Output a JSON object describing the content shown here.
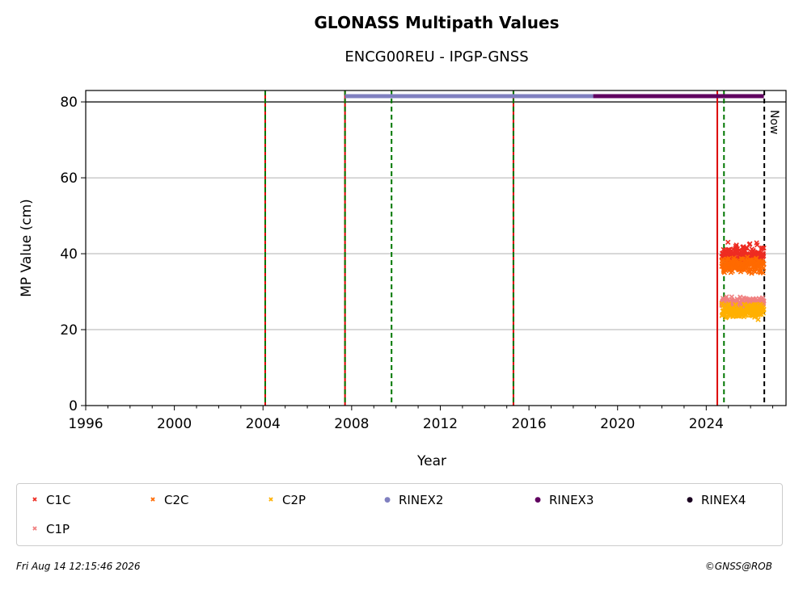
{
  "chart_data": {
    "type": "scatter",
    "title": "GLONASS Multipath Values",
    "subtitle": "ENCG00REU - IPGP-GNSS",
    "xlabel": "Year",
    "ylabel": "MP Value (cm)",
    "xlim": [
      1996,
      2027.6
    ],
    "ylim": [
      0,
      83
    ],
    "x_ticks": [
      1996,
      2000,
      2004,
      2008,
      2012,
      2016,
      2020,
      2024
    ],
    "y_ticks": [
      0,
      20,
      40,
      60,
      80
    ],
    "grid": "horizontal",
    "legend_position": "bottom",
    "series": [
      {
        "name": "C1C",
        "color": "#ee2c22",
        "marker": "x",
        "x_range": [
          2024.7,
          2026.6
        ],
        "mean": 40,
        "spread": 2
      },
      {
        "name": "C2C",
        "color": "#ff6a00",
        "marker": "x",
        "x_range": [
          2024.7,
          2026.6
        ],
        "mean": 37,
        "spread": 1.5
      },
      {
        "name": "C2P",
        "color": "#ffb000",
        "marker": "x",
        "x_range": [
          2024.7,
          2026.6
        ],
        "mean": 25,
        "spread": 1.5
      },
      {
        "name": "C1P",
        "color": "#f08080",
        "marker": "x",
        "x_range": [
          2024.7,
          2026.6
        ],
        "mean": 27,
        "spread": 1.2
      }
    ],
    "rinex_bars": [
      {
        "name": "RINEX2",
        "color": "#8080c0",
        "x_start": 2007.7,
        "x_end": 2018.9,
        "y": 81.5
      },
      {
        "name": "RINEX3",
        "color": "#600060",
        "x_start": 2018.9,
        "x_end": 2026.6,
        "y": 81.5
      },
      {
        "name": "RINEX4",
        "color": "#1a0020",
        "x_start": null,
        "x_end": null,
        "y": 81.5
      }
    ],
    "reference_line_y": 80,
    "event_lines": [
      {
        "x": 2004.1,
        "style": "red-green-dashed"
      },
      {
        "x": 2007.7,
        "style": "red-green-dashed"
      },
      {
        "x": 2009.8,
        "style": "green-dashed"
      },
      {
        "x": 2015.3,
        "style": "red-green-dashed"
      },
      {
        "x": 2024.5,
        "style": "red-solid"
      },
      {
        "x": 2024.8,
        "style": "green-dashed"
      }
    ],
    "now": {
      "x": 2026.62,
      "label": "Now"
    }
  },
  "legend": [
    {
      "label": "C1C",
      "color": "#ee2c22",
      "marker": "x"
    },
    {
      "label": "C2C",
      "color": "#ff6a00",
      "marker": "x"
    },
    {
      "label": "C2P",
      "color": "#ffb000",
      "marker": "x"
    },
    {
      "label": "RINEX2",
      "color": "#8080c0",
      "marker": "dot"
    },
    {
      "label": "RINEX3",
      "color": "#600060",
      "marker": "dot"
    },
    {
      "label": "RINEX4",
      "color": "#1a0020",
      "marker": "dot"
    },
    {
      "label": "C1P",
      "color": "#f08080",
      "marker": "x"
    }
  ],
  "footer": {
    "timestamp": "Fri Aug 14 12:15:46 2026",
    "copyright": "©GNSS@ROB"
  }
}
